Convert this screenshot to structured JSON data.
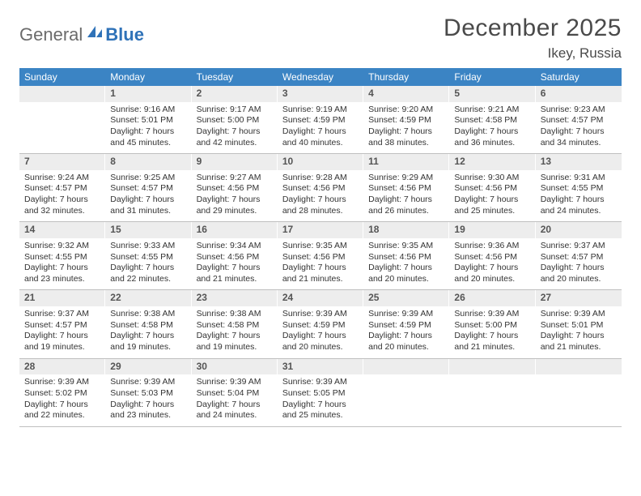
{
  "colors": {
    "header_bar": "#3b84c4",
    "day_num_bg": "#ededed",
    "row_border": "#bfbfbf",
    "text": "#333333",
    "logo_gray": "#6b6b6b",
    "logo_blue": "#2f72b8"
  },
  "typography": {
    "title_fontsize": 30,
    "location_fontsize": 17,
    "dow_fontsize": 12,
    "daynum_fontsize": 12,
    "body_fontsize": 10.5
  },
  "logo": {
    "part1": "General",
    "part2": "Blue"
  },
  "title": "December 2025",
  "location": "Ikey, Russia",
  "days_of_week": [
    "Sunday",
    "Monday",
    "Tuesday",
    "Wednesday",
    "Thursday",
    "Friday",
    "Saturday"
  ],
  "weeks": [
    [
      {
        "num": "",
        "sunrise": "",
        "sunset": "",
        "daylight": ""
      },
      {
        "num": "1",
        "sunrise": "Sunrise: 9:16 AM",
        "sunset": "Sunset: 5:01 PM",
        "daylight": "Daylight: 7 hours and 45 minutes."
      },
      {
        "num": "2",
        "sunrise": "Sunrise: 9:17 AM",
        "sunset": "Sunset: 5:00 PM",
        "daylight": "Daylight: 7 hours and 42 minutes."
      },
      {
        "num": "3",
        "sunrise": "Sunrise: 9:19 AM",
        "sunset": "Sunset: 4:59 PM",
        "daylight": "Daylight: 7 hours and 40 minutes."
      },
      {
        "num": "4",
        "sunrise": "Sunrise: 9:20 AM",
        "sunset": "Sunset: 4:59 PM",
        "daylight": "Daylight: 7 hours and 38 minutes."
      },
      {
        "num": "5",
        "sunrise": "Sunrise: 9:21 AM",
        "sunset": "Sunset: 4:58 PM",
        "daylight": "Daylight: 7 hours and 36 minutes."
      },
      {
        "num": "6",
        "sunrise": "Sunrise: 9:23 AM",
        "sunset": "Sunset: 4:57 PM",
        "daylight": "Daylight: 7 hours and 34 minutes."
      }
    ],
    [
      {
        "num": "7",
        "sunrise": "Sunrise: 9:24 AM",
        "sunset": "Sunset: 4:57 PM",
        "daylight": "Daylight: 7 hours and 32 minutes."
      },
      {
        "num": "8",
        "sunrise": "Sunrise: 9:25 AM",
        "sunset": "Sunset: 4:57 PM",
        "daylight": "Daylight: 7 hours and 31 minutes."
      },
      {
        "num": "9",
        "sunrise": "Sunrise: 9:27 AM",
        "sunset": "Sunset: 4:56 PM",
        "daylight": "Daylight: 7 hours and 29 minutes."
      },
      {
        "num": "10",
        "sunrise": "Sunrise: 9:28 AM",
        "sunset": "Sunset: 4:56 PM",
        "daylight": "Daylight: 7 hours and 28 minutes."
      },
      {
        "num": "11",
        "sunrise": "Sunrise: 9:29 AM",
        "sunset": "Sunset: 4:56 PM",
        "daylight": "Daylight: 7 hours and 26 minutes."
      },
      {
        "num": "12",
        "sunrise": "Sunrise: 9:30 AM",
        "sunset": "Sunset: 4:56 PM",
        "daylight": "Daylight: 7 hours and 25 minutes."
      },
      {
        "num": "13",
        "sunrise": "Sunrise: 9:31 AM",
        "sunset": "Sunset: 4:55 PM",
        "daylight": "Daylight: 7 hours and 24 minutes."
      }
    ],
    [
      {
        "num": "14",
        "sunrise": "Sunrise: 9:32 AM",
        "sunset": "Sunset: 4:55 PM",
        "daylight": "Daylight: 7 hours and 23 minutes."
      },
      {
        "num": "15",
        "sunrise": "Sunrise: 9:33 AM",
        "sunset": "Sunset: 4:55 PM",
        "daylight": "Daylight: 7 hours and 22 minutes."
      },
      {
        "num": "16",
        "sunrise": "Sunrise: 9:34 AM",
        "sunset": "Sunset: 4:56 PM",
        "daylight": "Daylight: 7 hours and 21 minutes."
      },
      {
        "num": "17",
        "sunrise": "Sunrise: 9:35 AM",
        "sunset": "Sunset: 4:56 PM",
        "daylight": "Daylight: 7 hours and 21 minutes."
      },
      {
        "num": "18",
        "sunrise": "Sunrise: 9:35 AM",
        "sunset": "Sunset: 4:56 PM",
        "daylight": "Daylight: 7 hours and 20 minutes."
      },
      {
        "num": "19",
        "sunrise": "Sunrise: 9:36 AM",
        "sunset": "Sunset: 4:56 PM",
        "daylight": "Daylight: 7 hours and 20 minutes."
      },
      {
        "num": "20",
        "sunrise": "Sunrise: 9:37 AM",
        "sunset": "Sunset: 4:57 PM",
        "daylight": "Daylight: 7 hours and 20 minutes."
      }
    ],
    [
      {
        "num": "21",
        "sunrise": "Sunrise: 9:37 AM",
        "sunset": "Sunset: 4:57 PM",
        "daylight": "Daylight: 7 hours and 19 minutes."
      },
      {
        "num": "22",
        "sunrise": "Sunrise: 9:38 AM",
        "sunset": "Sunset: 4:58 PM",
        "daylight": "Daylight: 7 hours and 19 minutes."
      },
      {
        "num": "23",
        "sunrise": "Sunrise: 9:38 AM",
        "sunset": "Sunset: 4:58 PM",
        "daylight": "Daylight: 7 hours and 19 minutes."
      },
      {
        "num": "24",
        "sunrise": "Sunrise: 9:39 AM",
        "sunset": "Sunset: 4:59 PM",
        "daylight": "Daylight: 7 hours and 20 minutes."
      },
      {
        "num": "25",
        "sunrise": "Sunrise: 9:39 AM",
        "sunset": "Sunset: 4:59 PM",
        "daylight": "Daylight: 7 hours and 20 minutes."
      },
      {
        "num": "26",
        "sunrise": "Sunrise: 9:39 AM",
        "sunset": "Sunset: 5:00 PM",
        "daylight": "Daylight: 7 hours and 21 minutes."
      },
      {
        "num": "27",
        "sunrise": "Sunrise: 9:39 AM",
        "sunset": "Sunset: 5:01 PM",
        "daylight": "Daylight: 7 hours and 21 minutes."
      }
    ],
    [
      {
        "num": "28",
        "sunrise": "Sunrise: 9:39 AM",
        "sunset": "Sunset: 5:02 PM",
        "daylight": "Daylight: 7 hours and 22 minutes."
      },
      {
        "num": "29",
        "sunrise": "Sunrise: 9:39 AM",
        "sunset": "Sunset: 5:03 PM",
        "daylight": "Daylight: 7 hours and 23 minutes."
      },
      {
        "num": "30",
        "sunrise": "Sunrise: 9:39 AM",
        "sunset": "Sunset: 5:04 PM",
        "daylight": "Daylight: 7 hours and 24 minutes."
      },
      {
        "num": "31",
        "sunrise": "Sunrise: 9:39 AM",
        "sunset": "Sunset: 5:05 PM",
        "daylight": "Daylight: 7 hours and 25 minutes."
      },
      {
        "num": "",
        "sunrise": "",
        "sunset": "",
        "daylight": ""
      },
      {
        "num": "",
        "sunrise": "",
        "sunset": "",
        "daylight": ""
      },
      {
        "num": "",
        "sunrise": "",
        "sunset": "",
        "daylight": ""
      }
    ]
  ]
}
